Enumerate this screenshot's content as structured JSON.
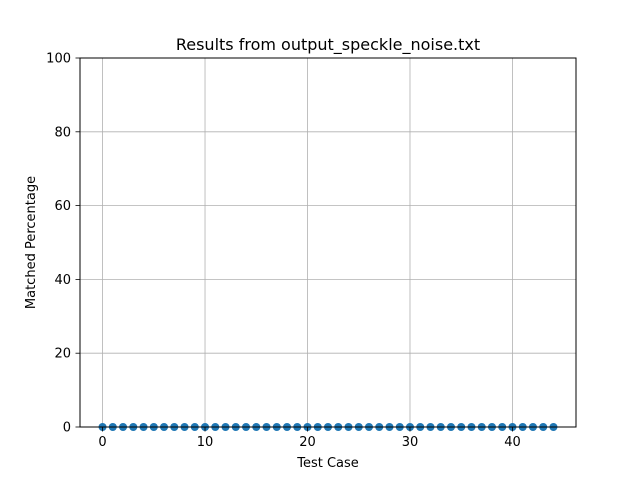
{
  "chart_data": {
    "type": "scatter",
    "title": "Results from output_speckle_noise.txt",
    "xlabel": "Test Case",
    "ylabel": "Matched Percentage",
    "xlim": [
      -2.2,
      46.2
    ],
    "ylim": [
      0,
      100
    ],
    "xticks": [
      0,
      10,
      20,
      30,
      40
    ],
    "yticks": [
      0,
      20,
      40,
      60,
      80,
      100
    ],
    "grid": true,
    "marker_color": "#1f77b4",
    "series": [
      {
        "x": [
          0,
          1,
          2,
          3,
          4,
          5,
          6,
          7,
          8,
          9,
          10,
          11,
          12,
          13,
          14,
          15,
          16,
          17,
          18,
          19,
          20,
          21,
          22,
          23,
          24,
          25,
          26,
          27,
          28,
          29,
          30,
          31,
          32,
          33,
          34,
          35,
          36,
          37,
          38,
          39,
          40,
          41,
          42,
          43,
          44
        ],
        "y": [
          0,
          0,
          0,
          0,
          0,
          0,
          0,
          0,
          0,
          0,
          0,
          0,
          0,
          0,
          0,
          0,
          0,
          0,
          0,
          0,
          0,
          0,
          0,
          0,
          0,
          0,
          0,
          0,
          0,
          0,
          0,
          0,
          0,
          0,
          0,
          0,
          0,
          0,
          0,
          0,
          0,
          0,
          0,
          0,
          0
        ]
      }
    ]
  }
}
